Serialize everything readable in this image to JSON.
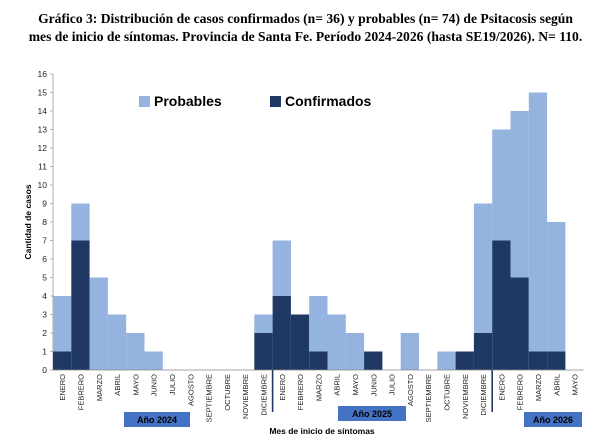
{
  "title_line1": "Gráfico 3: Distribución de casos confirmados (n= 36) y probables (n= 74) de Psitacosis según",
  "title_line2": "mes de inicio de síntomas. Provincia de Santa Fe. Período 2024-2026 (hasta SE19/2026). N= 110.",
  "colors": {
    "probables": "#95B3DF",
    "confirmados": "#1F3864",
    "year_box": "#4472C4",
    "separator": "#1F3864"
  },
  "chart_data": {
    "type": "bar",
    "stacked": true,
    "title": "Gráfico 3: Distribución de casos confirmados (n= 36) y probables (n= 74) de Psitacosis según mes de inicio de síntomas. Provincia de Santa Fe. Período 2024-2026 (hasta SE19/2026). N= 110.",
    "xlabel": "Mes de inicio de síntomas",
    "ylabel": "Cantidad de casos",
    "ylim": [
      0,
      16
    ],
    "yticks": [
      0,
      1,
      2,
      3,
      4,
      5,
      6,
      7,
      8,
      9,
      10,
      11,
      12,
      13,
      14,
      15,
      16
    ],
    "legend_position": "top-left",
    "categories": [
      "ENERO",
      "FEBRERO",
      "MARZO",
      "ABRIL",
      "MAYO",
      "JUNIO",
      "JULIO",
      "AGOSTO",
      "SEPTIEMBRE",
      "OCTUBRE",
      "NOVIEMBRE",
      "DICIEMBRE",
      "ENERO",
      "FEBRERO",
      "MARZO",
      "ABRIL",
      "MAYO",
      "JUNIO",
      "JULIO",
      "AGOSTO",
      "SEPTIEMBRE",
      "OCTUBRE",
      "NOVIEMBRE",
      "DICIEMBRE",
      "ENERO",
      "FEBRERO",
      "MARZO",
      "ABRIL",
      "MAYO"
    ],
    "year_groups": [
      {
        "label": "Año 2024",
        "start": 0,
        "end": 11
      },
      {
        "label": "Año 2025",
        "start": 12,
        "end": 23
      },
      {
        "label": "Año 2026",
        "start": 24,
        "end": 28
      }
    ],
    "series": [
      {
        "name": "Confirmados",
        "values": [
          1,
          7,
          0,
          0,
          0,
          0,
          0,
          0,
          0,
          0,
          0,
          2,
          4,
          3,
          1,
          0,
          0,
          1,
          0,
          0,
          0,
          0,
          1,
          2,
          7,
          5,
          1,
          1,
          0
        ]
      },
      {
        "name": "Probables",
        "values": [
          3,
          2,
          5,
          3,
          2,
          1,
          0,
          0,
          0,
          0,
          0,
          1,
          3,
          0,
          3,
          3,
          2,
          0,
          0,
          2,
          0,
          1,
          0,
          7,
          6,
          9,
          14,
          7,
          0
        ]
      }
    ]
  }
}
